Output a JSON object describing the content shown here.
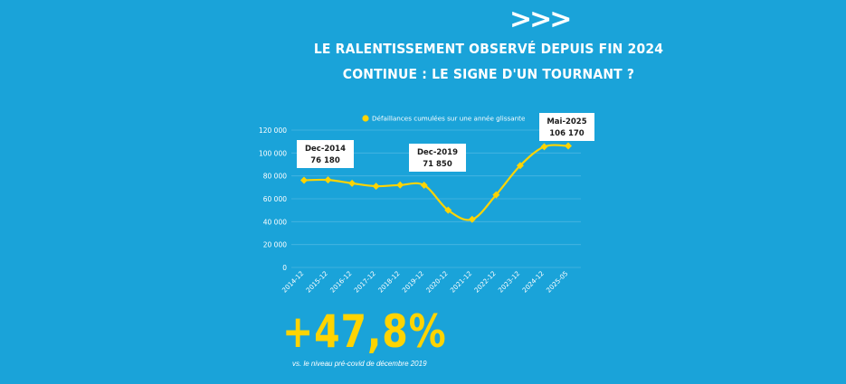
{
  "header": {
    "chevrons": ">>>",
    "title_line1": "LE RALENTISSEMENT OBSERVÉ DEPUIS FIN 2024",
    "title_line2": "CONTINUE : LE SIGNE D'UN TOURNANT ?"
  },
  "chart_data": {
    "type": "line",
    "categories": [
      "2014-12",
      "2015-12",
      "2016-12",
      "2017-12",
      "2018-12",
      "2019-12",
      "2020-12",
      "2021-12",
      "2022-12",
      "2023-12",
      "2024-12",
      "2025-05"
    ],
    "series": [
      {
        "name": "Défaillances cumulées sur une année glissante",
        "values": [
          76180,
          76500,
          73500,
          71000,
          72000,
          71850,
          50000,
          42000,
          63500,
          89000,
          105500,
          106170
        ],
        "color": "#ffd400"
      }
    ],
    "ylim": [
      0,
      120000
    ],
    "yticks": [
      0,
      20000,
      40000,
      60000,
      80000,
      100000,
      120000
    ],
    "ytick_labels": [
      "0",
      "20 000",
      "40 000",
      "60 000",
      "80 000",
      "100 000",
      "120 000"
    ],
    "grid": true,
    "legend_position": "top",
    "annotations": [
      {
        "category": "2014-12",
        "line1": "Dec-2014",
        "line2": "76 180"
      },
      {
        "category": "2019-12",
        "line1": "Dec-2019",
        "line2": "71 850"
      },
      {
        "category": "2025-05",
        "line1": "Mai-2025",
        "line2": "106 170"
      }
    ],
    "title": "",
    "xlabel": "",
    "ylabel": ""
  },
  "highlight": {
    "value": "+47,8%",
    "note": "vs. le niveau pré-covid de décembre 2019"
  },
  "colors": {
    "background": "#1aa3d9",
    "accent": "#ffd400",
    "grid": "#4ab6e2"
  }
}
